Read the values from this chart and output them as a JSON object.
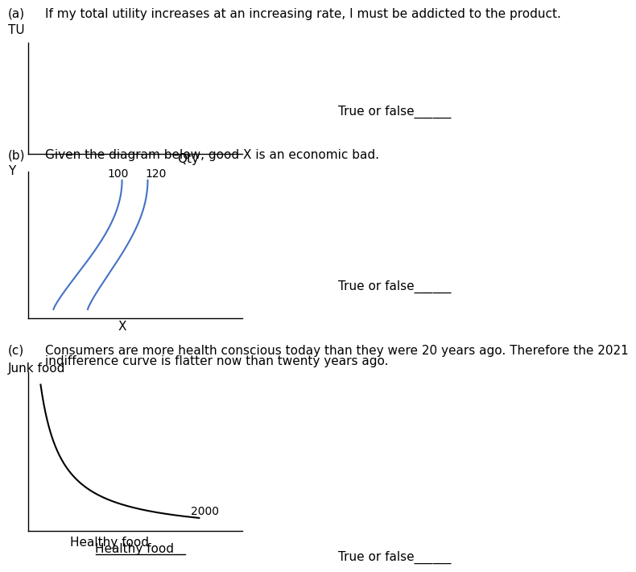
{
  "fig_width": 7.0,
  "fig_height": 7.43,
  "bg_color": "#ffffff",
  "text_color": "#000000",
  "line_color_b": "#4472c4",
  "line_color_c": "#000000",
  "panel_a": {
    "label": "(a)",
    "question": "If my total utility increases at an increasing rate, I must be addicted to the product.",
    "ylabel": "TU",
    "xlabel": "Qty",
    "true_or_false": "True or false______"
  },
  "panel_b": {
    "label": "(b)",
    "question": "Given the diagram below, good X is an economic bad.",
    "ylabel": "Y",
    "xlabel": "X",
    "label_100": "100",
    "label_120": "120",
    "true_or_false": "True or false______"
  },
  "panel_c": {
    "label": "(c)",
    "question_line1": "Consumers are more health conscious today than they were 20 years ago. Therefore the 2021",
    "question_line2": "indifference curve is flatter now than twenty years ago.",
    "ylabel": "Junk food",
    "xlabel": "Healthy food",
    "label_2000": "2000",
    "true_or_false": "True or false______"
  }
}
